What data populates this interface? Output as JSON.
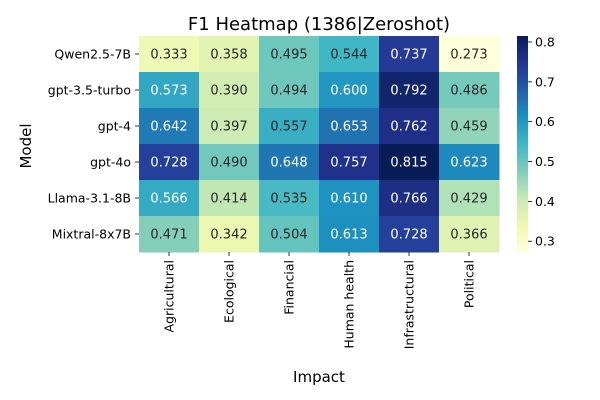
{
  "chart_data": {
    "type": "heatmap",
    "title": "F1 Heatmap (1386|Zeroshot)",
    "xlabel": "Impact",
    "ylabel": "Model",
    "x_categories": [
      "Agricultural",
      "Ecological",
      "Financial",
      "Human health",
      "Infrastructural",
      "Political"
    ],
    "y_categories": [
      "Qwen2.5-7B",
      "gpt-3.5-turbo",
      "gpt-4",
      "gpt-4o",
      "Llama-3.1-8B",
      "Mixtral-8x7B"
    ],
    "values": [
      [
        0.333,
        0.358,
        0.495,
        0.544,
        0.737,
        0.273
      ],
      [
        0.573,
        0.39,
        0.494,
        0.6,
        0.792,
        0.486
      ],
      [
        0.642,
        0.397,
        0.557,
        0.653,
        0.762,
        0.459
      ],
      [
        0.728,
        0.49,
        0.648,
        0.757,
        0.815,
        0.623
      ],
      [
        0.566,
        0.414,
        0.535,
        0.61,
        0.766,
        0.429
      ],
      [
        0.471,
        0.342,
        0.504,
        0.613,
        0.728,
        0.366
      ]
    ],
    "value_format": "0.000",
    "colormap": "YlGnBu",
    "colormap_stops": [
      "#ffffd9",
      "#edf8b1",
      "#c7e9b4",
      "#7fcdbb",
      "#41b6c4",
      "#1d91c0",
      "#225ea8",
      "#253494",
      "#081d58"
    ],
    "color_range": [
      0.273,
      0.815
    ],
    "colorbar_ticks": [
      0.3,
      0.4,
      0.5,
      0.6,
      0.7,
      0.8
    ],
    "grid": false
  }
}
